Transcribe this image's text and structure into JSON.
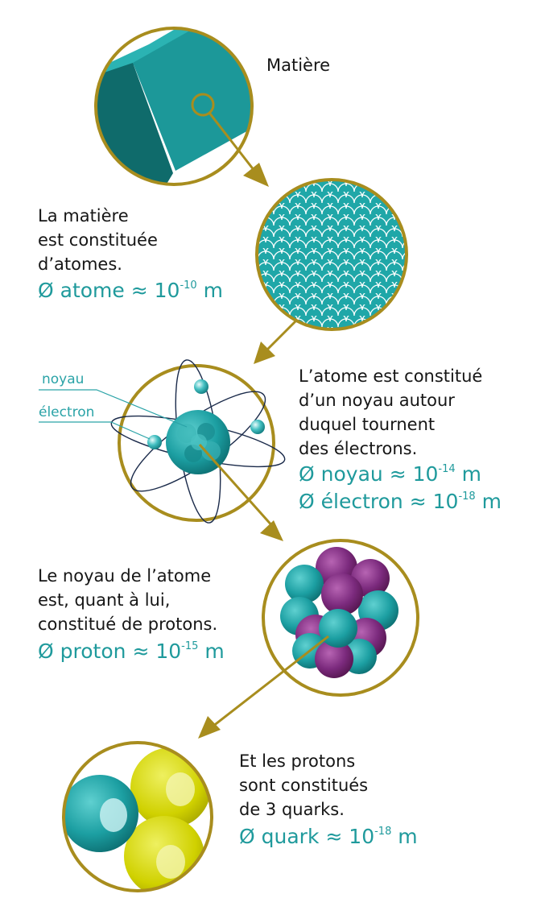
{
  "colors": {
    "gold": "#a88d1e",
    "teal": "#1fa4a6",
    "teal_dark": "#0f6e6e",
    "purple": "#7a2a7c",
    "yellow": "#d2d200",
    "label_teal": "#2aa3a7"
  },
  "matter": {
    "title": "Matière"
  },
  "atoms_block": {
    "lines": [
      "La matière",
      "est constituée",
      "d’atomes."
    ],
    "measure": {
      "symbol": "Ø",
      "name": "atome",
      "approx": "≈",
      "base": "10",
      "exp": "-10",
      "unit": "m"
    }
  },
  "atom_block": {
    "labels": {
      "nucleus": "noyau",
      "electron": "électron"
    },
    "lines": [
      "L’atome est constitué",
      "d’un noyau autour",
      "duquel tournent",
      "des électrons."
    ],
    "measures": [
      {
        "symbol": "Ø",
        "name": "noyau",
        "approx": "≈",
        "base": "10",
        "exp": "-14",
        "unit": "m"
      },
      {
        "symbol": "Ø",
        "name": "électron",
        "approx": "≈",
        "base": "10",
        "exp": "-18",
        "unit": "m"
      }
    ]
  },
  "nucleus_block": {
    "lines": [
      "Le noyau de l’atome",
      "est, quant à lui,",
      "constitué de protons."
    ],
    "measure": {
      "symbol": "Ø",
      "name": "proton",
      "approx": "≈",
      "base": "10",
      "exp": "-15",
      "unit": "m"
    }
  },
  "quark_block": {
    "lines": [
      "Et les protons",
      "sont constitués",
      "de 3 quarks."
    ],
    "measure": {
      "symbol": "Ø",
      "name": "quark",
      "approx": "≈",
      "base": "10",
      "exp": "-18",
      "unit": "m"
    }
  }
}
